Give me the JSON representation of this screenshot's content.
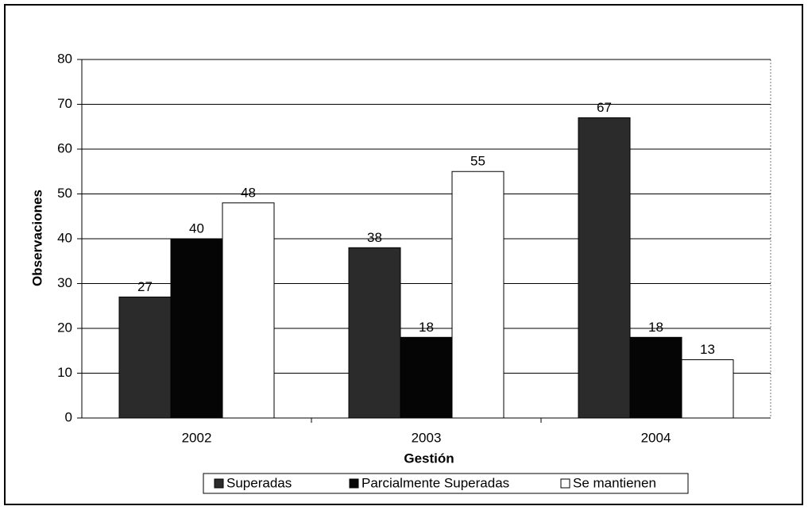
{
  "chart_data": {
    "type": "bar",
    "categories": [
      "2002",
      "2003",
      "2004"
    ],
    "series": [
      {
        "name": "Superadas",
        "color": "#2b2b2b",
        "values": [
          27,
          38,
          67
        ]
      },
      {
        "name": "Parcialmente Superadas",
        "color": "#050505",
        "values": [
          40,
          18,
          18
        ]
      },
      {
        "name": "Se mantienen",
        "color": "#ffffff",
        "values": [
          48,
          55,
          13
        ]
      }
    ],
    "xlabel": "Gestión",
    "ylabel": "Observaciones",
    "ylim": [
      0,
      80
    ],
    "yticks": [
      0,
      10,
      20,
      30,
      40,
      50,
      60,
      70,
      80
    ],
    "grid": true,
    "legend": "bottom"
  }
}
